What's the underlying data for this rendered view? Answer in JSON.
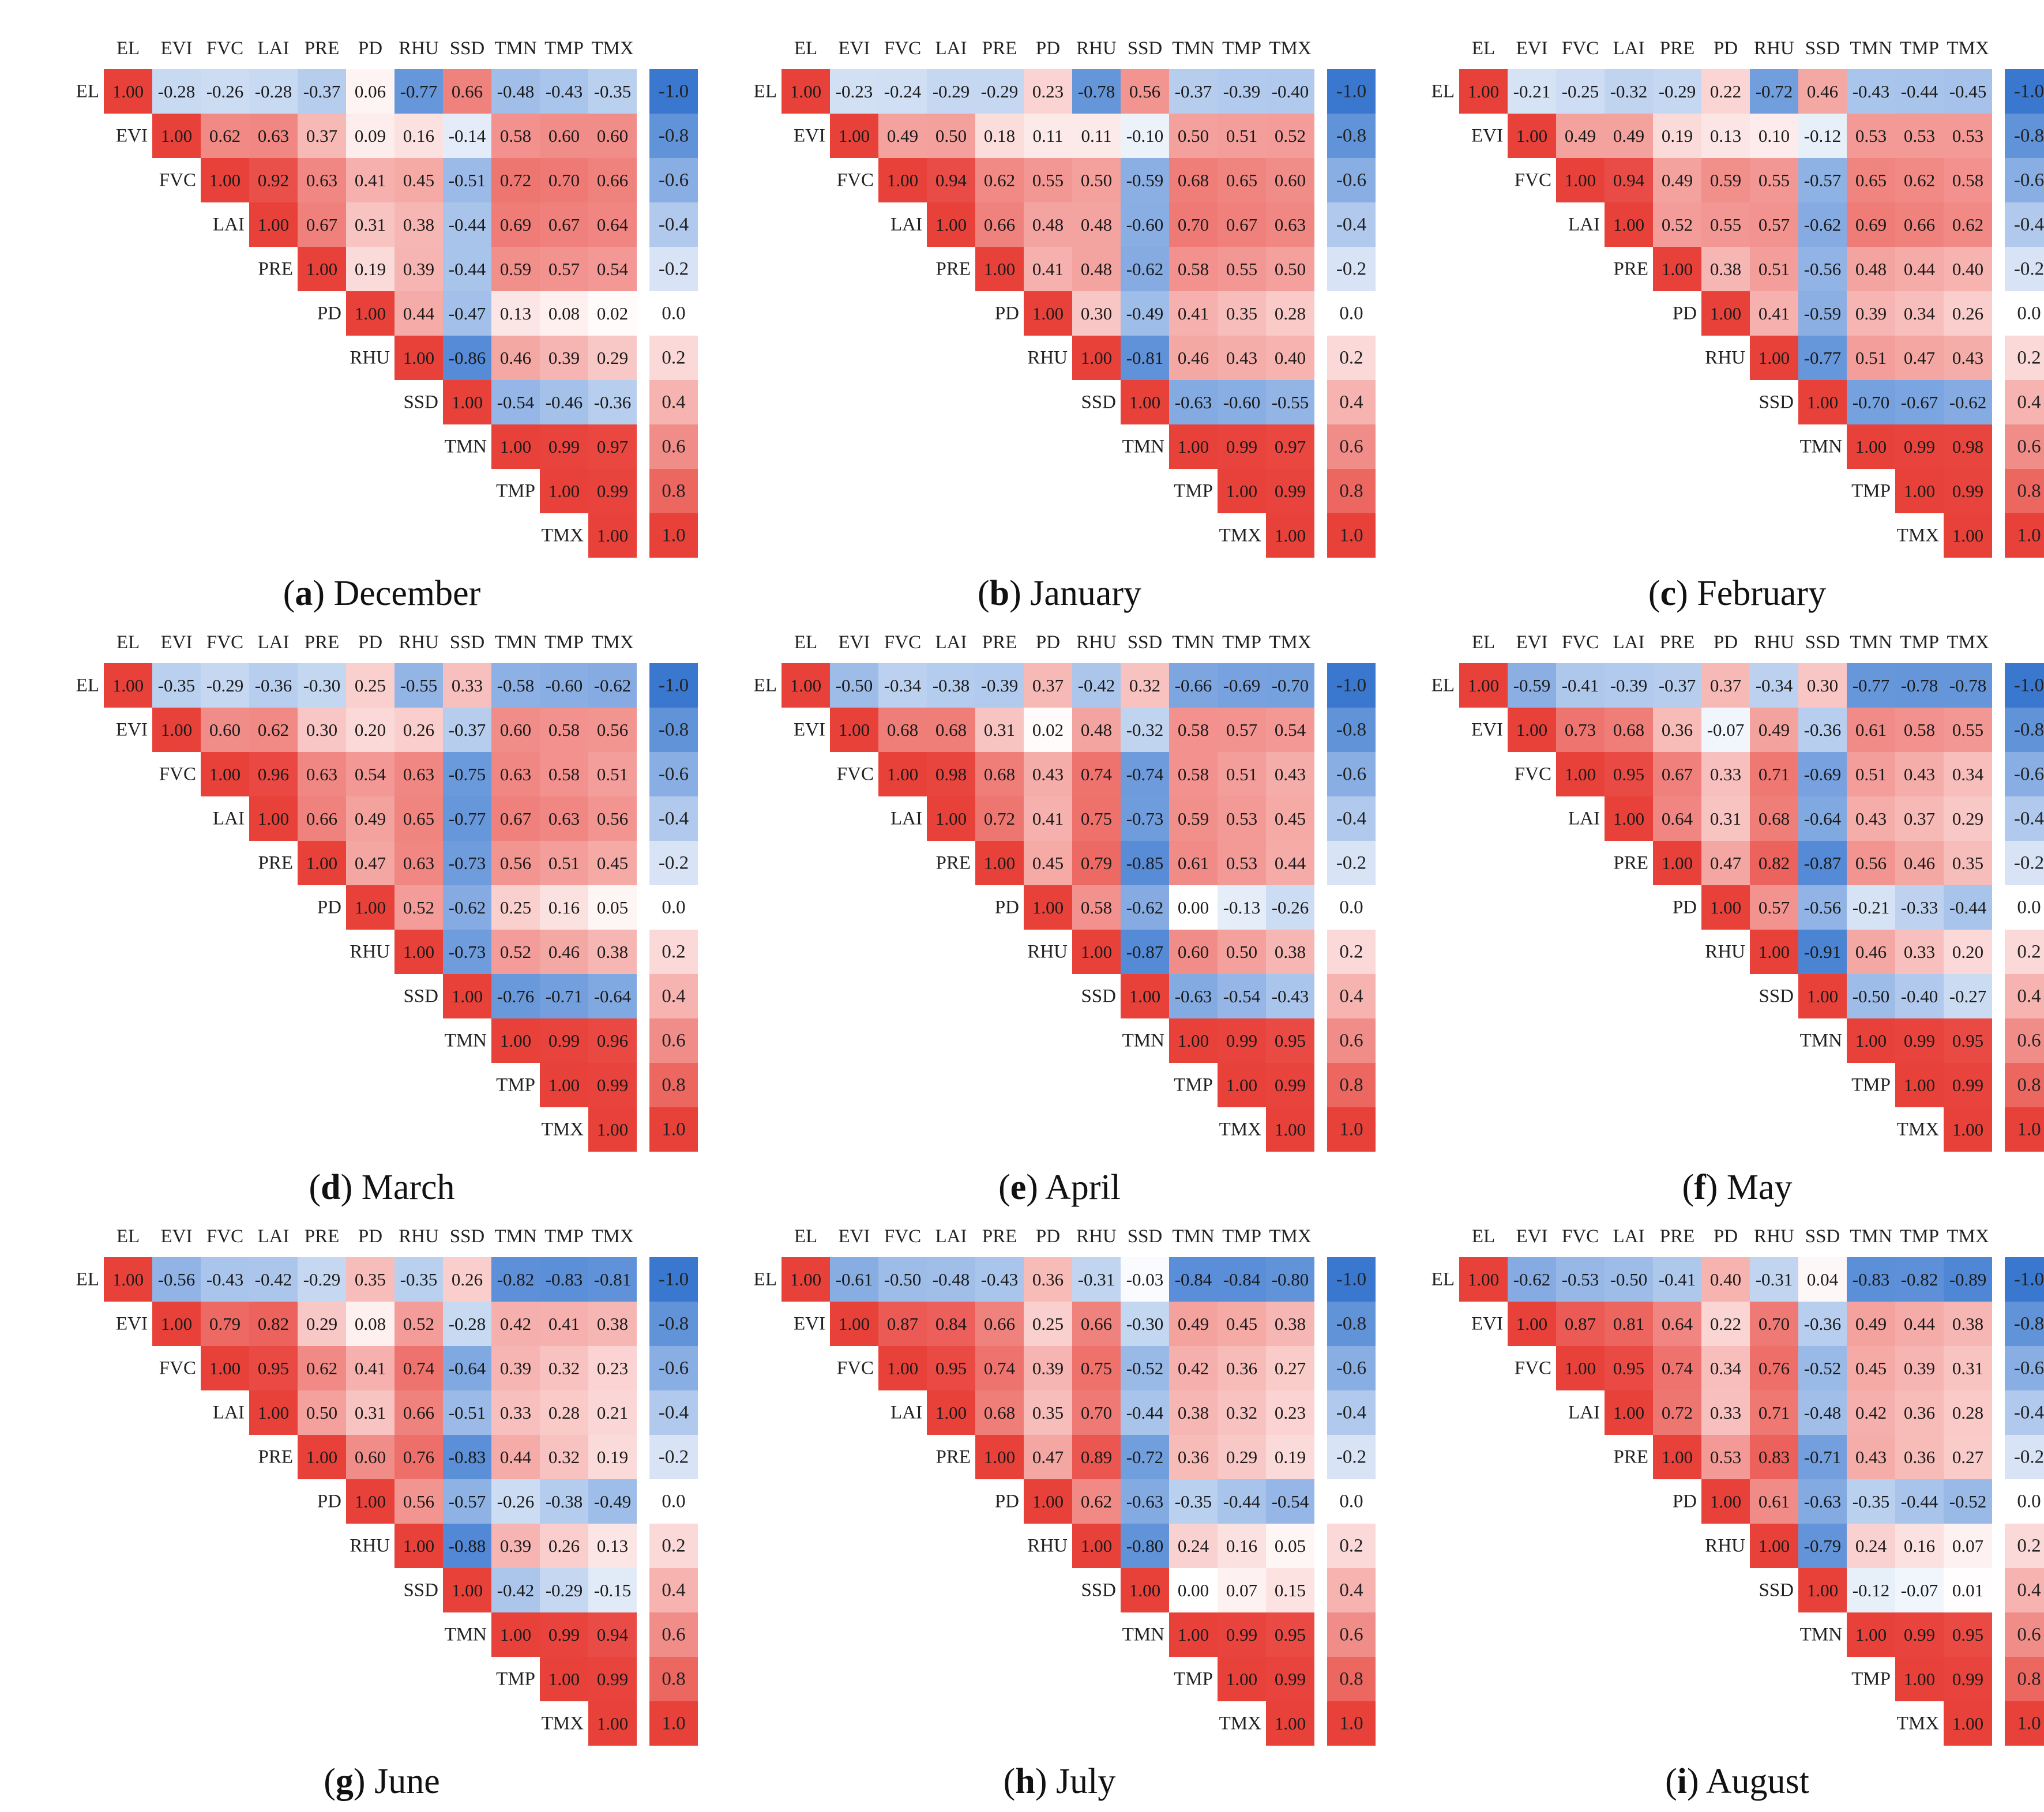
{
  "variables": [
    "EL",
    "EVI",
    "FVC",
    "LAI",
    "PRE",
    "PD",
    "RHU",
    "SSD",
    "TMN",
    "TMP",
    "TMX"
  ],
  "colorbar_ticks": [
    "-1.0",
    "-0.8",
    "-0.6",
    "-0.4",
    "-0.2",
    "0.0",
    "0.2",
    "0.4",
    "0.6",
    "0.8",
    "1.0"
  ],
  "colors": {
    "negative": "#3a78d0",
    "positive": "#e8413a",
    "neutral": "#ffffff"
  },
  "chart_data": [
    {
      "type": "heatmap",
      "panel": "a",
      "month": "December",
      "title_suffix": "December",
      "clim": [
        -1,
        1
      ],
      "rows": [
        [
          "1.00",
          "-0.28",
          "-0.26",
          "-0.28",
          "-0.37",
          "0.06",
          "-0.77",
          "0.66",
          "-0.48",
          "-0.43",
          "-0.35"
        ],
        [
          "1.00",
          "0.62",
          "0.63",
          "0.37",
          "0.09",
          "0.16",
          "-0.14",
          "0.58",
          "0.60",
          "0.60"
        ],
        [
          "1.00",
          "0.92",
          "0.63",
          "0.41",
          "0.45",
          "-0.51",
          "0.72",
          "0.70",
          "0.66"
        ],
        [
          "1.00",
          "0.67",
          "0.31",
          "0.38",
          "-0.44",
          "0.69",
          "0.67",
          "0.64"
        ],
        [
          "1.00",
          "0.19",
          "0.39",
          "-0.44",
          "0.59",
          "0.57",
          "0.54"
        ],
        [
          "1.00",
          "0.44",
          "-0.47",
          "0.13",
          "0.08",
          "0.02"
        ],
        [
          "1.00",
          "-0.86",
          "0.46",
          "0.39",
          "0.29"
        ],
        [
          "1.00",
          "-0.54",
          "-0.46",
          "-0.36"
        ],
        [
          "1.00",
          "0.99",
          "0.97"
        ],
        [
          "1.00",
          "0.99"
        ],
        [
          "1.00"
        ]
      ]
    },
    {
      "type": "heatmap",
      "panel": "b",
      "month": "January",
      "title_suffix": "January",
      "clim": [
        -1,
        1
      ],
      "rows": [
        [
          "1.00",
          "-0.23",
          "-0.24",
          "-0.29",
          "-0.29",
          "0.23",
          "-0.78",
          "0.56",
          "-0.37",
          "-0.39",
          "-0.40"
        ],
        [
          "1.00",
          "0.49",
          "0.50",
          "0.18",
          "0.11",
          "0.11",
          "-0.10",
          "0.50",
          "0.51",
          "0.52"
        ],
        [
          "1.00",
          "0.94",
          "0.62",
          "0.55",
          "0.50",
          "-0.59",
          "0.68",
          "0.65",
          "0.60"
        ],
        [
          "1.00",
          "0.66",
          "0.48",
          "0.48",
          "-0.60",
          "0.70",
          "0.67",
          "0.63"
        ],
        [
          "1.00",
          "0.41",
          "0.48",
          "-0.62",
          "0.58",
          "0.55",
          "0.50"
        ],
        [
          "1.00",
          "0.30",
          "-0.49",
          "0.41",
          "0.35",
          "0.28"
        ],
        [
          "1.00",
          "-0.81",
          "0.46",
          "0.43",
          "0.40"
        ],
        [
          "1.00",
          "-0.63",
          "-0.60",
          "-0.55"
        ],
        [
          "1.00",
          "0.99",
          "0.97"
        ],
        [
          "1.00",
          "0.99"
        ],
        [
          "1.00"
        ]
      ]
    },
    {
      "type": "heatmap",
      "panel": "c",
      "month": "February",
      "title_suffix": "February",
      "clim": [
        -1,
        1
      ],
      "rows": [
        [
          "1.00",
          "-0.21",
          "-0.25",
          "-0.32",
          "-0.29",
          "0.22",
          "-0.72",
          "0.46",
          "-0.43",
          "-0.44",
          "-0.45"
        ],
        [
          "1.00",
          "0.49",
          "0.49",
          "0.19",
          "0.13",
          "0.10",
          "-0.12",
          "0.53",
          "0.53",
          "0.53"
        ],
        [
          "1.00",
          "0.94",
          "0.49",
          "0.59",
          "0.55",
          "-0.57",
          "0.65",
          "0.62",
          "0.58"
        ],
        [
          "1.00",
          "0.52",
          "0.55",
          "0.57",
          "-0.62",
          "0.69",
          "0.66",
          "0.62"
        ],
        [
          "1.00",
          "0.38",
          "0.51",
          "-0.56",
          "0.48",
          "0.44",
          "0.40"
        ],
        [
          "1.00",
          "0.41",
          "-0.59",
          "0.39",
          "0.34",
          "0.26"
        ],
        [
          "1.00",
          "-0.77",
          "0.51",
          "0.47",
          "0.43"
        ],
        [
          "1.00",
          "-0.70",
          "-0.67",
          "-0.62"
        ],
        [
          "1.00",
          "0.99",
          "0.98"
        ],
        [
          "1.00",
          "0.99"
        ],
        [
          "1.00"
        ]
      ]
    },
    {
      "type": "heatmap",
      "panel": "d",
      "month": "March",
      "title_suffix": "March",
      "clim": [
        -1,
        1
      ],
      "rows": [
        [
          "1.00",
          "-0.35",
          "-0.29",
          "-0.36",
          "-0.30",
          "0.25",
          "-0.55",
          "0.33",
          "-0.58",
          "-0.60",
          "-0.62"
        ],
        [
          "1.00",
          "0.60",
          "0.62",
          "0.30",
          "0.20",
          "0.26",
          "-0.37",
          "0.60",
          "0.58",
          "0.56"
        ],
        [
          "1.00",
          "0.96",
          "0.63",
          "0.54",
          "0.63",
          "-0.75",
          "0.63",
          "0.58",
          "0.51"
        ],
        [
          "1.00",
          "0.66",
          "0.49",
          "0.65",
          "-0.77",
          "0.67",
          "0.63",
          "0.56"
        ],
        [
          "1.00",
          "0.47",
          "0.63",
          "-0.73",
          "0.56",
          "0.51",
          "0.45"
        ],
        [
          "1.00",
          "0.52",
          "-0.62",
          "0.25",
          "0.16",
          "0.05"
        ],
        [
          "1.00",
          "-0.73",
          "0.52",
          "0.46",
          "0.38"
        ],
        [
          "1.00",
          "-0.76",
          "-0.71",
          "-0.64"
        ],
        [
          "1.00",
          "0.99",
          "0.96"
        ],
        [
          "1.00",
          "0.99"
        ],
        [
          "1.00"
        ]
      ]
    },
    {
      "type": "heatmap",
      "panel": "e",
      "month": "April",
      "title_suffix": "April",
      "clim": [
        -1,
        1
      ],
      "rows": [
        [
          "1.00",
          "-0.50",
          "-0.34",
          "-0.38",
          "-0.39",
          "0.37",
          "-0.42",
          "0.32",
          "-0.66",
          "-0.69",
          "-0.70"
        ],
        [
          "1.00",
          "0.68",
          "0.68",
          "0.31",
          "0.02",
          "0.48",
          "-0.32",
          "0.58",
          "0.57",
          "0.54"
        ],
        [
          "1.00",
          "0.98",
          "0.68",
          "0.43",
          "0.74",
          "-0.74",
          "0.58",
          "0.51",
          "0.43"
        ],
        [
          "1.00",
          "0.72",
          "0.41",
          "0.75",
          "-0.73",
          "0.59",
          "0.53",
          "0.45"
        ],
        [
          "1.00",
          "0.45",
          "0.79",
          "-0.85",
          "0.61",
          "0.53",
          "0.44"
        ],
        [
          "1.00",
          "0.58",
          "-0.62",
          "0.00",
          "-0.13",
          "-0.26"
        ],
        [
          "1.00",
          "-0.87",
          "0.60",
          "0.50",
          "0.38"
        ],
        [
          "1.00",
          "-0.63",
          "-0.54",
          "-0.43"
        ],
        [
          "1.00",
          "0.99",
          "0.95"
        ],
        [
          "1.00",
          "0.99"
        ],
        [
          "1.00"
        ]
      ]
    },
    {
      "type": "heatmap",
      "panel": "f",
      "month": "May",
      "title_suffix": "May",
      "clim": [
        -1,
        1
      ],
      "rows": [
        [
          "1.00",
          "-0.59",
          "-0.41",
          "-0.39",
          "-0.37",
          "0.37",
          "-0.34",
          "0.30",
          "-0.77",
          "-0.78",
          "-0.78"
        ],
        [
          "1.00",
          "0.73",
          "0.68",
          "0.36",
          "-0.07",
          "0.49",
          "-0.36",
          "0.61",
          "0.58",
          "0.55"
        ],
        [
          "1.00",
          "0.95",
          "0.67",
          "0.33",
          "0.71",
          "-0.69",
          "0.51",
          "0.43",
          "0.34"
        ],
        [
          "1.00",
          "0.64",
          "0.31",
          "0.68",
          "-0.64",
          "0.43",
          "0.37",
          "0.29"
        ],
        [
          "1.00",
          "0.47",
          "0.82",
          "-0.87",
          "0.56",
          "0.46",
          "0.35"
        ],
        [
          "1.00",
          "0.57",
          "-0.56",
          "-0.21",
          "-0.33",
          "-0.44"
        ],
        [
          "1.00",
          "-0.91",
          "0.46",
          "0.33",
          "0.20"
        ],
        [
          "1.00",
          "-0.50",
          "-0.40",
          "-0.27"
        ],
        [
          "1.00",
          "0.99",
          "0.95"
        ],
        [
          "1.00",
          "0.99"
        ],
        [
          "1.00"
        ]
      ]
    },
    {
      "type": "heatmap",
      "panel": "g",
      "month": "June",
      "title_suffix": "June",
      "clim": [
        -1,
        1
      ],
      "rows": [
        [
          "1.00",
          "-0.56",
          "-0.43",
          "-0.42",
          "-0.29",
          "0.35",
          "-0.35",
          "0.26",
          "-0.82",
          "-0.83",
          "-0.81"
        ],
        [
          "1.00",
          "0.79",
          "0.82",
          "0.29",
          "0.08",
          "0.52",
          "-0.28",
          "0.42",
          "0.41",
          "0.38"
        ],
        [
          "1.00",
          "0.95",
          "0.62",
          "0.41",
          "0.74",
          "-0.64",
          "0.39",
          "0.32",
          "0.23"
        ],
        [
          "1.00",
          "0.50",
          "0.31",
          "0.66",
          "-0.51",
          "0.33",
          "0.28",
          "0.21"
        ],
        [
          "1.00",
          "0.60",
          "0.76",
          "-0.83",
          "0.44",
          "0.32",
          "0.19"
        ],
        [
          "1.00",
          "0.56",
          "-0.57",
          "-0.26",
          "-0.38",
          "-0.49"
        ],
        [
          "1.00",
          "-0.88",
          "0.39",
          "0.26",
          "0.13"
        ],
        [
          "1.00",
          "-0.42",
          "-0.29",
          "-0.15"
        ],
        [
          "1.00",
          "0.99",
          "0.94"
        ],
        [
          "1.00",
          "0.99"
        ],
        [
          "1.00"
        ]
      ]
    },
    {
      "type": "heatmap",
      "panel": "h",
      "month": "July",
      "title_suffix": "July",
      "clim": [
        -1,
        1
      ],
      "rows": [
        [
          "1.00",
          "-0.61",
          "-0.50",
          "-0.48",
          "-0.43",
          "0.36",
          "-0.31",
          "-0.03",
          "-0.84",
          "-0.84",
          "-0.80"
        ],
        [
          "1.00",
          "0.87",
          "0.84",
          "0.66",
          "0.25",
          "0.66",
          "-0.30",
          "0.49",
          "0.45",
          "0.38"
        ],
        [
          "1.00",
          "0.95",
          "0.74",
          "0.39",
          "0.75",
          "-0.52",
          "0.42",
          "0.36",
          "0.27"
        ],
        [
          "1.00",
          "0.68",
          "0.35",
          "0.70",
          "-0.44",
          "0.38",
          "0.32",
          "0.23"
        ],
        [
          "1.00",
          "0.47",
          "0.89",
          "-0.72",
          "0.36",
          "0.29",
          "0.19"
        ],
        [
          "1.00",
          "0.62",
          "-0.63",
          "-0.35",
          "-0.44",
          "-0.54"
        ],
        [
          "1.00",
          "-0.80",
          "0.24",
          "0.16",
          "0.05"
        ],
        [
          "1.00",
          "0.00",
          "0.07",
          "0.15"
        ],
        [
          "1.00",
          "0.99",
          "0.95"
        ],
        [
          "1.00",
          "0.99"
        ],
        [
          "1.00"
        ]
      ]
    },
    {
      "type": "heatmap",
      "panel": "i",
      "month": "August",
      "title_suffix": "August",
      "clim": [
        -1,
        1
      ],
      "rows": [
        [
          "1.00",
          "-0.62",
          "-0.53",
          "-0.50",
          "-0.41",
          "0.40",
          "-0.31",
          "0.04",
          "-0.83",
          "-0.82",
          "-0.89"
        ],
        [
          "1.00",
          "0.87",
          "0.81",
          "0.64",
          "0.22",
          "0.70",
          "-0.36",
          "0.49",
          "0.44",
          "0.38"
        ],
        [
          "1.00",
          "0.95",
          "0.74",
          "0.34",
          "0.76",
          "-0.52",
          "0.45",
          "0.39",
          "0.31"
        ],
        [
          "1.00",
          "0.72",
          "0.33",
          "0.71",
          "-0.48",
          "0.42",
          "0.36",
          "0.28"
        ],
        [
          "1.00",
          "0.53",
          "0.83",
          "-0.71",
          "0.43",
          "0.36",
          "0.27"
        ],
        [
          "1.00",
          "0.61",
          "-0.63",
          "-0.35",
          "-0.44",
          "-0.52"
        ],
        [
          "1.00",
          "-0.79",
          "0.24",
          "0.16",
          "0.07"
        ],
        [
          "1.00",
          "-0.12",
          "-0.07",
          "0.01"
        ],
        [
          "1.00",
          "0.99",
          "0.95"
        ],
        [
          "1.00",
          "0.99"
        ],
        [
          "1.00"
        ]
      ]
    }
  ]
}
